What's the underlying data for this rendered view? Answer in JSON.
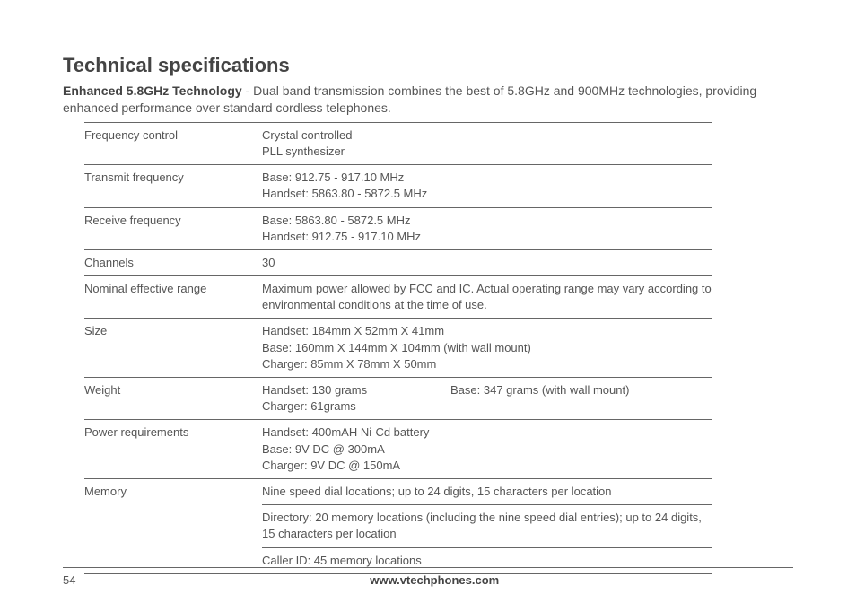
{
  "title": "Technical specifications",
  "intro_strong": "Enhanced 5.8GHz Technology",
  "intro_rest": " - Dual band transmission combines the best of 5.8GHz and 900MHz technologies, providing enhanced performance over standard cordless telephones.",
  "rows": {
    "freq_control": {
      "label": "Frequency control",
      "line1": "Crystal controlled",
      "line2": "PLL synthesizer"
    },
    "transmit_freq": {
      "label": "Transmit frequency",
      "line1": "Base: 912.75 - 917.10 MHz",
      "line2": "Handset: 5863.80 - 5872.5 MHz"
    },
    "receive_freq": {
      "label": "Receive frequency",
      "line1": "Base: 5863.80 - 5872.5 MHz",
      "line2": "Handset: 912.75 - 917.10 MHz"
    },
    "channels": {
      "label": "Channels",
      "line1": "30"
    },
    "range": {
      "label": "Nominal effective range",
      "line1": "Maximum power allowed by FCC and IC. Actual operating range may vary according to environmental conditions at the time of use."
    },
    "size": {
      "label": "Size",
      "line1": "Handset: 184mm X 52mm X 41mm",
      "line2": "Base: 160mm X 144mm X 104mm (with wall mount)",
      "line3": "Charger:  85mm X 78mm X 50mm"
    },
    "weight": {
      "label": "Weight",
      "line1a": "Handset: 130 grams",
      "line1b": "Base: 347 grams (with wall mount)",
      "line2": "Charger: 61grams"
    },
    "power": {
      "label": "Power requirements",
      "line1": "Handset: 400mAH Ni-Cd battery",
      "line2": "Base: 9V DC @ 300mA",
      "line3": "Charger: 9V DC @ 150mA"
    },
    "memory": {
      "label": "Memory",
      "line1": "Nine speed dial locations; up to 24 digits, 15 characters per location",
      "line2": "Directory: 20 memory locations (including the nine speed dial entries); up to 24 digits, 15 characters per location",
      "line3": "Caller ID: 45 memory locations"
    }
  },
  "footer": {
    "page": "54",
    "url": "www.vtechphones.com"
  }
}
